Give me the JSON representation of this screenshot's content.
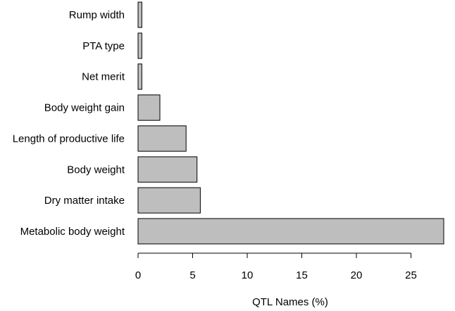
{
  "chart_data": {
    "type": "bar",
    "orientation": "horizontal",
    "title": "",
    "xlabel": "QTL Names (%)",
    "ylabel": "",
    "xlim": [
      0,
      28
    ],
    "x_ticks": [
      0,
      5,
      10,
      15,
      20,
      25
    ],
    "categories": [
      "Metabolic body weight",
      "Dry matter intake",
      "Body weight",
      "Length of productive life",
      "Body weight gain",
      "Net merit",
      "PTA type",
      "Rump width"
    ],
    "values": [
      28.0,
      5.7,
      5.4,
      4.4,
      2.0,
      0.35,
      0.35,
      0.35
    ],
    "bar_color": "#bebebe",
    "edge_color": "#000000"
  }
}
